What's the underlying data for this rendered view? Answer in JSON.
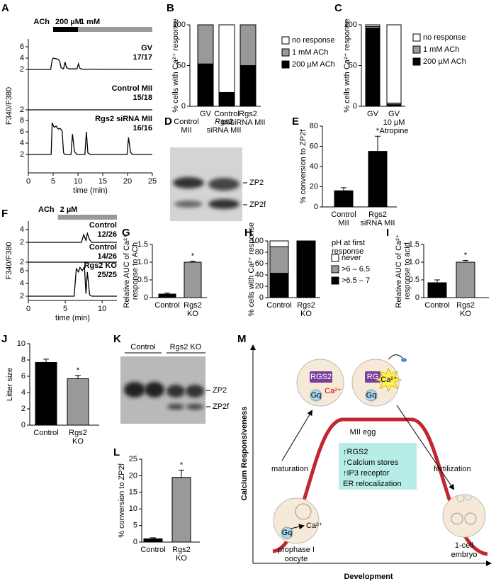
{
  "chart_data": [
    {
      "type": "trace",
      "label": "A",
      "stimulus_label": "ACh",
      "stimuli": [
        {
          "name": "200 µM",
          "color": "#000000",
          "start": 5,
          "end": 10
        },
        {
          "name": "1 mM",
          "color": "#999999",
          "start": 10,
          "end": 25
        }
      ],
      "xlim": [
        0,
        25
      ],
      "xticks": [
        0,
        5,
        10,
        15,
        20,
        25
      ],
      "xlabel": "time (min)",
      "ylabel": "F340/F380",
      "series": [
        {
          "name": "GV",
          "ratio": "17/17",
          "color": "#000000",
          "yticks": [
            2,
            4,
            6
          ],
          "x": [
            0,
            4.5,
            4.8,
            5,
            6,
            6.3,
            6.6,
            7.1,
            7.4,
            7.7,
            8.2,
            9.8,
            10.1,
            10.4,
            10.8,
            25
          ],
          "values": [
            2,
            2,
            3.6,
            4,
            3.8,
            3.5,
            2.3,
            2.1,
            3.3,
            2.3,
            2.1,
            2.1,
            3,
            2.2,
            2.05,
            2
          ]
        },
        {
          "name": "Control MII",
          "ratio": "15/18",
          "color": "#000000",
          "yticks": [
            2
          ],
          "x": [
            0,
            25
          ],
          "values": [
            2,
            2
          ]
        },
        {
          "name": "Rgs2 siRNA MII",
          "ratio": "16/16",
          "color": "#000000",
          "yticks": [
            2,
            4,
            6,
            8
          ],
          "x": [
            0,
            4.6,
            4.8,
            5.2,
            5.6,
            6,
            6.4,
            6.8,
            7.1,
            7.3,
            8.6,
            8.9,
            9.3,
            9.8,
            11.4,
            11.7,
            12,
            12.5,
            19.9,
            20.2,
            20.6,
            21,
            25
          ],
          "values": [
            2,
            2,
            7.6,
            6.8,
            7,
            6.5,
            6.6,
            6.2,
            2.3,
            2,
            2,
            5.6,
            2.5,
            2,
            2,
            6,
            2.3,
            2,
            2,
            5,
            2.4,
            2,
            2
          ]
        }
      ]
    },
    {
      "type": "stacked-bar",
      "label": "B",
      "ylabel": "% cells with Ca²⁺ response",
      "categories": [
        [
          "GV"
        ],
        [
          "Control",
          "MII"
        ],
        [
          "Rgs2",
          "siRNA MII"
        ]
      ],
      "ylim": [
        0,
        100
      ],
      "yticks": [
        0,
        50,
        100
      ],
      "series": [
        {
          "name": "200 µM ACh",
          "color": "#000000",
          "values": [
            52,
            17,
            50
          ]
        },
        {
          "name": "1 mM ACh",
          "color": "#999999",
          "values": [
            48,
            0,
            50
          ]
        },
        {
          "name": "no response",
          "color": "#ffffff",
          "values": [
            0,
            83,
            0
          ]
        }
      ]
    },
    {
      "type": "stacked-bar",
      "label": "C",
      "ylabel": "% cells with Ca²⁺ response",
      "categories": [
        [
          "GV"
        ],
        [
          "GV",
          "10 µM",
          "Atropine"
        ]
      ],
      "ylim": [
        0,
        100
      ],
      "yticks": [
        0,
        50,
        100
      ],
      "series": [
        {
          "name": "200 µM ACh",
          "color": "#000000",
          "values": [
            96,
            2
          ]
        },
        {
          "name": "1 mM ACh",
          "color": "#999999",
          "values": [
            2,
            2
          ]
        },
        {
          "name": "no response",
          "color": "#ffffff",
          "values": [
            2,
            96
          ]
        }
      ]
    },
    {
      "type": "bar",
      "label": "E",
      "ylabel": "% conversion to ZP2f",
      "categories": [
        [
          "Control",
          "MII"
        ],
        [
          "Rgs2",
          "siRNA MII"
        ]
      ],
      "values": [
        16,
        55
      ],
      "errors": [
        3,
        15
      ],
      "colors": [
        "#000000",
        "#000000"
      ],
      "significant": [
        false,
        true
      ],
      "annotation": "*",
      "ylim": [
        0,
        80
      ],
      "yticks": [
        0,
        20,
        40,
        60,
        80
      ]
    },
    {
      "type": "trace",
      "label": "F",
      "stimulus_label": "ACh",
      "stimuli": [
        {
          "name": "2 µM",
          "color": "#999999",
          "start": 4,
          "end": 12
        }
      ],
      "xlim": [
        0,
        12
      ],
      "xticks": [
        0,
        5,
        10
      ],
      "xlabel": "time (min)",
      "ylabel": "F340/F380",
      "series": [
        {
          "name": "Control",
          "ratio": "12/26",
          "color": "#000000",
          "yticks": [
            2,
            4
          ],
          "x": [
            0,
            7.2,
            7.5,
            7.8,
            8,
            8.3,
            8.6,
            12
          ],
          "values": [
            2,
            2,
            3.2,
            2.3,
            3.4,
            2.4,
            2,
            2
          ]
        },
        {
          "name": "Control",
          "ratio": "14/26",
          "color": "#000000",
          "yticks": [
            2
          ],
          "x": [
            0,
            12
          ],
          "values": [
            2,
            2
          ]
        },
        {
          "name": "Rgs2 KO",
          "ratio": "25/25",
          "color": "#000000",
          "yticks": [
            2,
            4,
            6
          ],
          "x": [
            0,
            6.2,
            6.5,
            6.8,
            7,
            7.3,
            7.6,
            7.8,
            8,
            8.3,
            8.6,
            12
          ],
          "values": [
            2,
            2,
            6.3,
            5.8,
            6.5,
            6,
            6.6,
            2.4,
            5.8,
            2.2,
            2,
            2
          ]
        }
      ]
    },
    {
      "type": "bar",
      "label": "G",
      "ylabel": [
        "Relative AUC of Ca²⁺",
        "response to ACh"
      ],
      "categories": [
        [
          "Control"
        ],
        [
          "Rgs2",
          "KO"
        ]
      ],
      "values": [
        0.1,
        1.0
      ],
      "errors": [
        0.03,
        0.03
      ],
      "colors": [
        "#000000",
        "#999999"
      ],
      "significant": [
        false,
        true
      ],
      "annotation": "*",
      "ylim": [
        0,
        1.5
      ],
      "yticks": [
        0,
        0.5,
        {
          "value": 1,
          "label": "1.0"
        },
        1.5
      ]
    },
    {
      "type": "stacked-bar",
      "label": "H",
      "ylabel": "% cells with Ca²⁺ response",
      "legend_title": [
        "pH at first",
        "response"
      ],
      "categories": [
        [
          "Control"
        ],
        [
          "Rgs2",
          "KO"
        ]
      ],
      "ylim": [
        0,
        100
      ],
      "yticks": [
        0,
        20,
        40,
        60,
        80,
        100
      ],
      "series": [
        {
          "name": ">6.5 – 7",
          "color": "#000000",
          "values": [
            43,
            100
          ]
        },
        {
          "name": ">6 – 6.5",
          "color": "#999999",
          "values": [
            47,
            0
          ]
        },
        {
          "name": "never",
          "color": "#ffffff",
          "values": [
            10,
            0
          ]
        }
      ]
    },
    {
      "type": "bar",
      "label": "I",
      "ylabel": [
        "Relative AUC of Ca²⁺",
        "response to acid"
      ],
      "categories": [
        [
          "Control"
        ],
        [
          "Rgs2",
          "KO"
        ]
      ],
      "values": [
        0.42,
        1.0
      ],
      "errors": [
        0.08,
        0.05
      ],
      "colors": [
        "#000000",
        "#999999"
      ],
      "significant": [
        false,
        true
      ],
      "annotation": "*",
      "ylim": [
        0,
        1.5
      ],
      "yticks": [
        0,
        0.5,
        {
          "value": 1,
          "label": "1.0"
        },
        1.5
      ]
    },
    {
      "type": "bar",
      "label": "J",
      "ylabel": "Litter size",
      "categories": [
        [
          "Control"
        ],
        [
          "Rgs2",
          "KO"
        ]
      ],
      "values": [
        7.7,
        5.7
      ],
      "errors": [
        0.4,
        0.4
      ],
      "colors": [
        "#000000",
        "#999999"
      ],
      "significant": [
        false,
        true
      ],
      "annotation": "*",
      "ylim": [
        0,
        10
      ],
      "yticks": [
        0,
        2,
        4,
        6,
        8,
        10
      ]
    },
    {
      "type": "bar",
      "label": "L",
      "ylabel": "% conversion to ZP2f",
      "categories": [
        [
          "Control"
        ],
        [
          "Rgs2",
          "KO"
        ]
      ],
      "values": [
        1,
        19.5
      ],
      "errors": [
        0.3,
        2.2
      ],
      "colors": [
        "#000000",
        "#999999"
      ],
      "significant": [
        false,
        true
      ],
      "annotation": "*",
      "ylim": [
        0,
        25
      ],
      "yticks": [
        0,
        5,
        10,
        15,
        20,
        25
      ]
    }
  ],
  "gels": [
    {
      "label": "D",
      "lanes": [
        [
          "Control",
          "MII"
        ],
        [
          "Rgs2",
          "siRNA MII"
        ]
      ],
      "bands": [
        "ZP2",
        "ZP2f"
      ]
    },
    {
      "label": "K",
      "lanes": [
        "Control",
        "Rgs2 KO"
      ],
      "bands": [
        "ZP2",
        "ZP2f"
      ]
    }
  ],
  "diagram": {
    "label": "M",
    "y_axis": "Calcium Responsiveness",
    "x_axis": "Development",
    "arrows": [
      "maturation",
      "fertilization"
    ],
    "stages": [
      [
        "prophase I",
        "oocyte"
      ],
      "MII egg",
      [
        "1-cell",
        "embryo"
      ]
    ],
    "changes": [
      "↑RGS2",
      "↑Calcium stores",
      "↑IP3 receptor",
      "ER relocalization"
    ],
    "molecules": {
      "rgs2": "RGS2",
      "rgs2_cut": "RG",
      "gq": "Gq",
      "ca": "Ca²⁺"
    }
  }
}
